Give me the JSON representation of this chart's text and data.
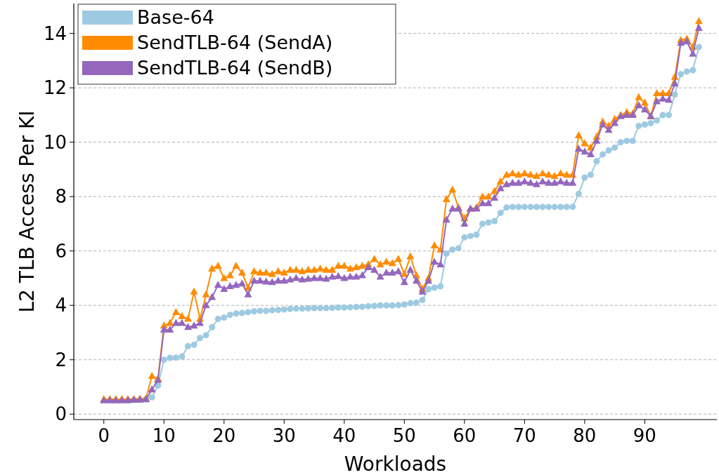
{
  "chart_data": {
    "type": "line",
    "xlabel": "Workloads",
    "ylabel": "L2 TLB Access Per KI",
    "x": [
      0,
      1,
      2,
      3,
      4,
      5,
      6,
      7,
      8,
      9,
      10,
      11,
      12,
      13,
      14,
      15,
      16,
      17,
      18,
      19,
      20,
      21,
      22,
      23,
      24,
      25,
      26,
      27,
      28,
      29,
      30,
      31,
      32,
      33,
      34,
      35,
      36,
      37,
      38,
      39,
      40,
      41,
      42,
      43,
      44,
      45,
      46,
      47,
      48,
      49,
      50,
      51,
      52,
      53,
      54,
      55,
      56,
      57,
      58,
      59,
      60,
      61,
      62,
      63,
      64,
      65,
      66,
      67,
      68,
      69,
      70,
      71,
      72,
      73,
      74,
      75,
      76,
      77,
      78,
      79,
      80,
      81,
      82,
      83,
      84,
      85,
      86,
      87,
      88,
      89,
      90,
      91,
      92,
      93,
      94,
      95,
      96,
      97,
      98,
      99
    ],
    "series": [
      {
        "name": "Base-64",
        "color": "#9ecae1",
        "marker": "circle",
        "values": [
          null,
          null,
          null,
          null,
          0.5,
          0.52,
          0.53,
          0.55,
          0.62,
          1.05,
          2.0,
          2.07,
          2.08,
          2.12,
          2.5,
          2.55,
          2.8,
          2.9,
          3.2,
          3.5,
          3.55,
          3.65,
          3.7,
          3.72,
          3.75,
          3.78,
          3.8,
          3.8,
          3.82,
          3.83,
          3.85,
          3.87,
          3.88,
          3.88,
          3.89,
          3.9,
          3.9,
          3.9,
          3.91,
          3.92,
          3.92,
          3.93,
          3.94,
          3.95,
          3.97,
          3.98,
          4.0,
          4.0,
          4.0,
          4.01,
          4.03,
          4.08,
          4.1,
          4.2,
          4.6,
          4.65,
          4.7,
          5.9,
          6.05,
          6.1,
          6.5,
          6.55,
          6.6,
          7.0,
          7.05,
          7.1,
          7.4,
          7.6,
          7.62,
          7.62,
          7.62,
          7.62,
          7.62,
          7.62,
          7.62,
          7.62,
          7.62,
          7.62,
          7.62,
          8.1,
          8.7,
          8.8,
          9.3,
          9.55,
          9.7,
          9.8,
          10.0,
          10.05,
          10.05,
          10.6,
          10.65,
          10.7,
          10.8,
          11.0,
          11.0,
          11.75,
          12.5,
          12.6,
          12.65,
          13.5
        ]
      },
      {
        "name": "SendTLB-64 (SendA)",
        "color": "#ff8c00",
        "marker": "triangle",
        "values": [
          0.55,
          0.55,
          0.55,
          0.55,
          0.55,
          0.55,
          0.56,
          0.57,
          1.4,
          1.3,
          3.25,
          3.35,
          3.75,
          3.6,
          3.5,
          4.5,
          3.5,
          4.4,
          5.35,
          5.45,
          5.0,
          5.1,
          5.45,
          5.2,
          4.65,
          5.25,
          5.2,
          5.2,
          5.15,
          5.25,
          5.2,
          5.3,
          5.3,
          5.25,
          5.3,
          5.3,
          5.35,
          5.3,
          5.3,
          5.45,
          5.45,
          5.35,
          5.4,
          5.45,
          5.5,
          5.7,
          5.5,
          5.6,
          5.55,
          5.7,
          5.15,
          5.8,
          5.1,
          4.6,
          5.0,
          6.2,
          6.05,
          7.9,
          8.25,
          7.6,
          7.2,
          7.55,
          7.6,
          8.0,
          8.0,
          8.2,
          8.55,
          8.8,
          8.85,
          8.8,
          8.85,
          8.8,
          8.75,
          8.85,
          8.8,
          8.75,
          8.85,
          8.8,
          8.8,
          10.25,
          9.95,
          9.8,
          10.2,
          10.75,
          10.6,
          10.85,
          11.0,
          11.1,
          11.05,
          11.65,
          11.45,
          10.95,
          11.8,
          11.8,
          11.8,
          12.4,
          13.75,
          13.8,
          13.5,
          14.45
        ]
      },
      {
        "name": "SendTLB-64 (SendB)",
        "color": "#9467bd",
        "marker": "triangle",
        "values": [
          0.5,
          0.5,
          0.5,
          0.5,
          0.51,
          0.52,
          0.53,
          0.54,
          0.9,
          1.25,
          3.1,
          3.1,
          3.35,
          3.35,
          3.2,
          3.25,
          3.35,
          4.0,
          4.3,
          4.75,
          4.6,
          4.7,
          4.75,
          4.8,
          4.4,
          4.9,
          4.9,
          4.87,
          4.85,
          4.9,
          4.9,
          4.95,
          5.0,
          4.95,
          4.97,
          5.0,
          5.0,
          4.97,
          5.05,
          5.07,
          5.0,
          5.05,
          5.05,
          5.1,
          5.4,
          5.3,
          5.05,
          5.2,
          5.2,
          5.25,
          4.85,
          5.3,
          4.9,
          4.5,
          4.9,
          5.6,
          5.5,
          7.15,
          7.55,
          7.55,
          7.0,
          7.55,
          7.55,
          7.75,
          7.75,
          7.95,
          8.3,
          8.45,
          8.5,
          8.5,
          8.55,
          8.5,
          8.45,
          8.55,
          8.5,
          8.5,
          8.55,
          8.5,
          8.5,
          9.75,
          9.65,
          9.55,
          10.05,
          10.65,
          10.45,
          10.7,
          10.95,
          11.0,
          11.0,
          11.35,
          11.2,
          10.95,
          11.5,
          11.6,
          11.55,
          12.15,
          13.65,
          13.7,
          13.25,
          14.2
        ]
      }
    ],
    "xlim": [
      -5,
      102
    ],
    "ylim": [
      -0.2,
      15.1
    ],
    "xticks": [
      0,
      10,
      20,
      30,
      40,
      50,
      60,
      70,
      80,
      90
    ],
    "yticks": [
      0,
      2,
      4,
      6,
      8,
      10,
      12,
      14
    ],
    "grid": "y",
    "legend": "top left",
    "line_style": "solid"
  }
}
